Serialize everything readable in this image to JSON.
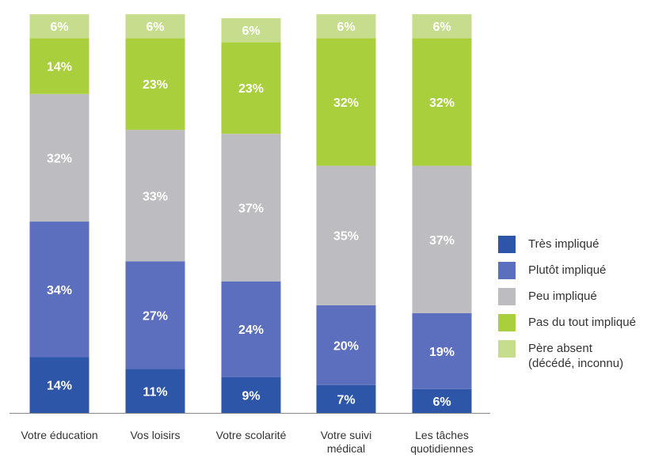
{
  "colors": {
    "tres": "#2d56a8",
    "plutot": "#5b6fbe",
    "peu": "#bdbdc1",
    "pas": "#a9cf3c",
    "absent": "#c7dd8e",
    "axis": "#888888"
  },
  "chart_data": {
    "type": "bar",
    "stacked": true,
    "categories": [
      "Votre éducation",
      "Vos loisirs",
      "Votre scolarité",
      "Votre suivi\nmédical",
      "Les tâches\nquotidiennes"
    ],
    "series": [
      {
        "name": "Très impliqué",
        "color_key": "tres",
        "values": [
          14,
          11,
          9,
          7,
          6
        ]
      },
      {
        "name": "Plutôt impliqué",
        "color_key": "plutot",
        "values": [
          34,
          27,
          24,
          20,
          19
        ]
      },
      {
        "name": "Peu impliqué",
        "color_key": "peu",
        "values": [
          32,
          33,
          37,
          35,
          37
        ]
      },
      {
        "name": "Pas du tout impliqué",
        "color_key": "pas",
        "values": [
          14,
          23,
          23,
          32,
          32
        ]
      },
      {
        "name": "Père absent\n(décédé, inconnu)",
        "color_key": "absent",
        "values": [
          6,
          6,
          6,
          6,
          6
        ]
      }
    ],
    "value_suffix": "%",
    "legend_position": "right",
    "grid": false
  }
}
